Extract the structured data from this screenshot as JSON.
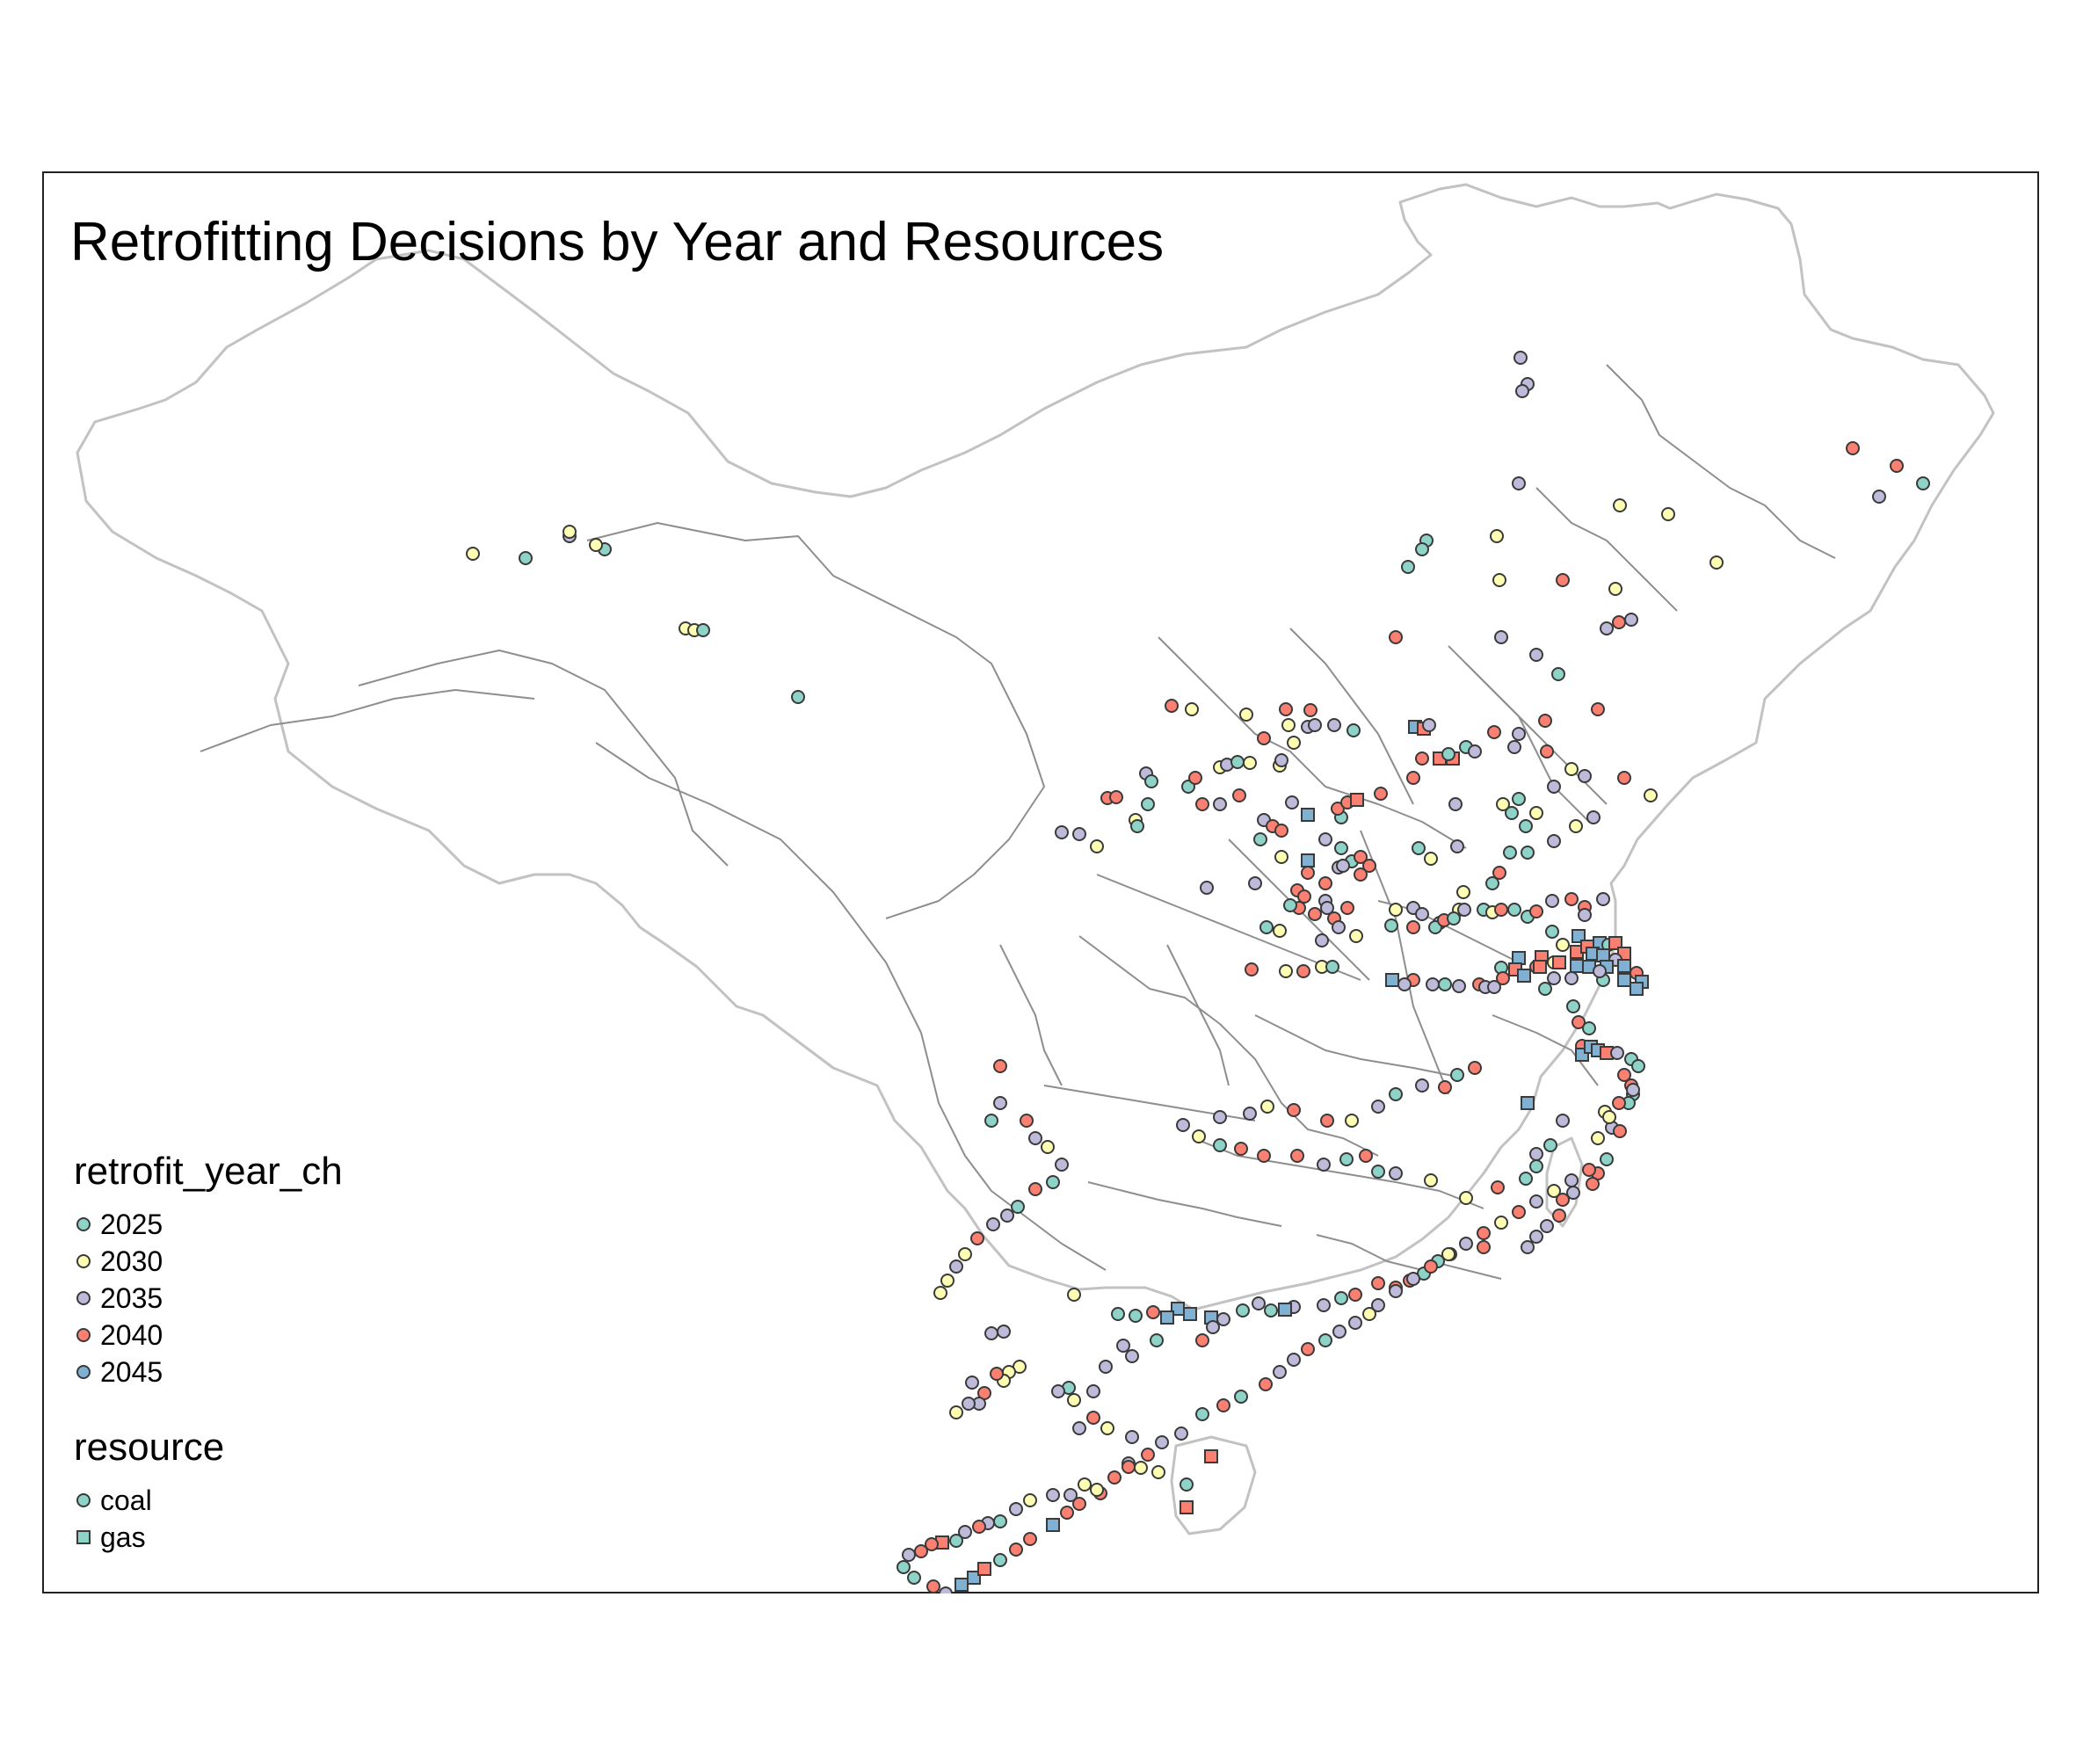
{
  "map": {
    "title": "Retrofitting Decisions by Year and Resources",
    "colors": {
      "border_outer": "#c2c2c2",
      "border_inner": "#8e8e8e",
      "point_stroke": "#3a3a3a"
    },
    "legend_year": {
      "title": "retrofit_year_ch",
      "items": [
        {
          "label": "2025",
          "color": "#8dd3c7"
        },
        {
          "label": "2030",
          "color": "#ffffb3"
        },
        {
          "label": "2035",
          "color": "#bebada"
        },
        {
          "label": "2040",
          "color": "#fb8072"
        },
        {
          "label": "2045",
          "color": "#80b1d3"
        }
      ]
    },
    "legend_resource": {
      "title": "resource",
      "items": [
        {
          "label": "coal",
          "shape": "circle-icon",
          "color": "#8dd3c7"
        },
        {
          "label": "gas",
          "shape": "square-icon",
          "color": "#8dd3c7"
        }
      ]
    }
  }
}
